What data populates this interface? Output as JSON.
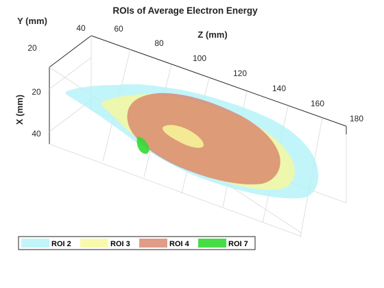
{
  "chart_data": {
    "type": "3d-surface",
    "title": "ROIs of Average Electron Energy",
    "xlabel": "X (mm)",
    "ylabel": "Y (mm)",
    "zlabel": "Z (mm)",
    "x_ticks": [
      "20",
      "40"
    ],
    "y_ticks": [
      "20",
      "40"
    ],
    "z_ticks": [
      "60",
      "80",
      "100",
      "120",
      "140",
      "160",
      "180"
    ],
    "zlim": [
      50,
      180
    ],
    "grid": true,
    "legend_position": "bottom",
    "series": [
      {
        "name": "ROI 2",
        "color": "#b3f3f9",
        "opacity": 0.8
      },
      {
        "name": "ROI 3",
        "color": "#f8f89a",
        "opacity": 0.8
      },
      {
        "name": "ROI 4",
        "color": "#d9836a",
        "opacity": 0.8
      },
      {
        "name": "ROI 7",
        "color": "#33d933",
        "opacity": 0.9
      }
    ]
  }
}
